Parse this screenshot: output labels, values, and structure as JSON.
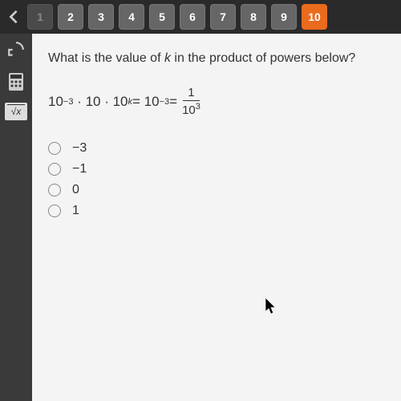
{
  "tabs": [
    {
      "n": "1",
      "s": "dis"
    },
    {
      "n": "2",
      "s": "act"
    },
    {
      "n": "3",
      "s": "act"
    },
    {
      "n": "4",
      "s": "act"
    },
    {
      "n": "5",
      "s": "act"
    },
    {
      "n": "6",
      "s": "act"
    },
    {
      "n": "7",
      "s": "act"
    },
    {
      "n": "8",
      "s": "act"
    },
    {
      "n": "9",
      "s": "act"
    },
    {
      "n": "10",
      "s": "cur"
    }
  ],
  "tool_sqrt": "√x",
  "q_a": "What is the value of ",
  "q_k": "k",
  "q_b": " in the product of powers below?",
  "eq_a": "10",
  "eq_a_e": "−3",
  "eq_m": "· 10 · 10",
  "eq_k": "k",
  "eq_eq": " = 10",
  "eq_r_e": "−3",
  "eq_eq2": " = ",
  "fr_n": "1",
  "fr_d": "10",
  "fr_d_e": "3",
  "opts": [
    "−3",
    "−1",
    "0",
    "1"
  ],
  "colors": {
    "bg": "#2a2a2a",
    "side": "#3a3a3a",
    "content": "#f4f4f4",
    "orange": "#ea6a1e",
    "tab": "#666",
    "tabdis": "#4a4a4a"
  }
}
